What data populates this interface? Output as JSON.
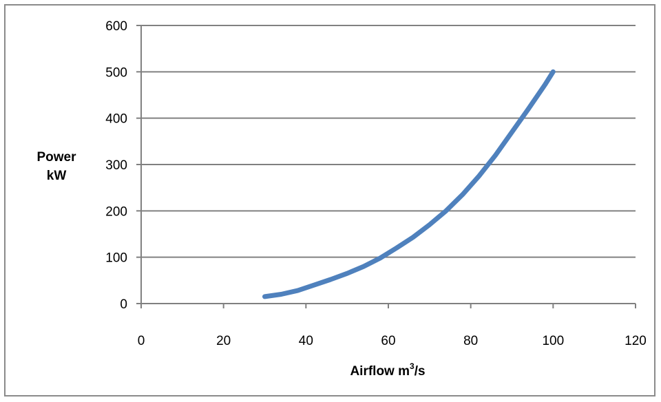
{
  "chart_data": {
    "type": "line",
    "title": "",
    "xlabel": {
      "main": "Airflow m",
      "superscript": "3",
      "suffix": "/s"
    },
    "ylabel": [
      "Power",
      "kW"
    ],
    "xlim": [
      0,
      120
    ],
    "ylim": [
      0,
      600
    ],
    "x_ticks": [
      "0",
      "20",
      "40",
      "60",
      "80",
      "100",
      "120"
    ],
    "y_ticks": [
      "0",
      "100",
      "200",
      "300",
      "400",
      "500",
      "600"
    ],
    "grid": "horizontal",
    "legend": "none",
    "series": [
      {
        "color": "#4f81bd",
        "x": [
          30,
          34,
          38,
          42,
          46,
          50,
          54,
          58,
          62,
          66,
          70,
          74,
          78,
          82,
          86,
          90,
          94,
          98,
          100
        ],
        "y": [
          15,
          20,
          28,
          40,
          52,
          65,
          80,
          98,
          120,
          143,
          170,
          200,
          235,
          275,
          320,
          370,
          420,
          472,
          500
        ]
      }
    ]
  },
  "colors": {
    "series": "#4f81bd",
    "gridline": "#808080",
    "axis": "#808080",
    "frame": "#8a8a8a"
  }
}
